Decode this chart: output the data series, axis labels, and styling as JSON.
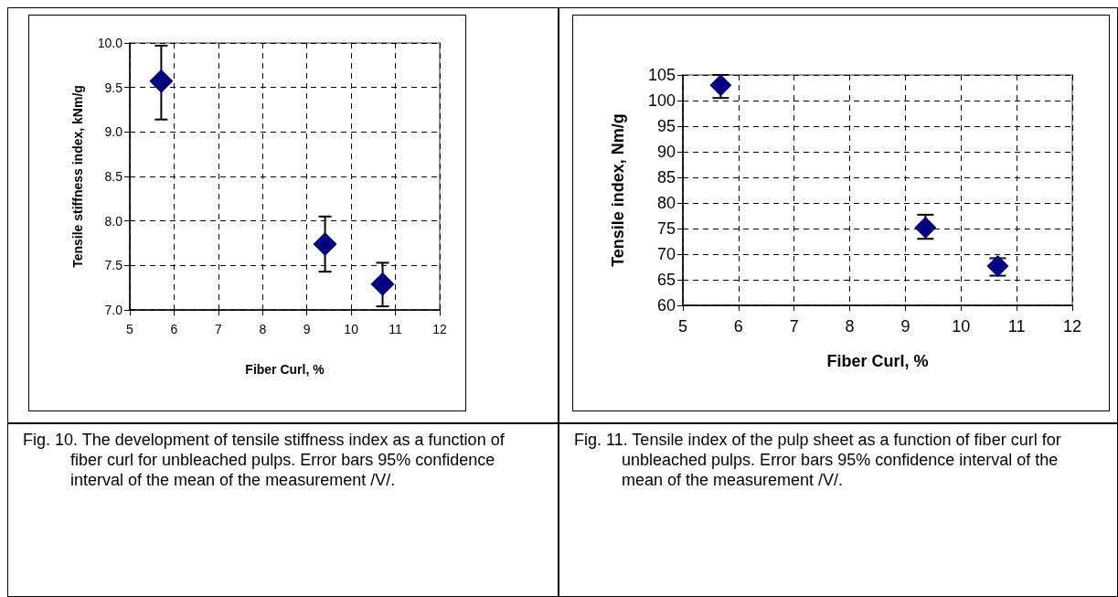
{
  "chart_data": [
    {
      "type": "scatter",
      "xlabel": "Fiber Curl, %",
      "ylabel": "Tensile stiffness index, kNm/g",
      "x": [
        5.71,
        9.41,
        10.71
      ],
      "values": [
        9.57,
        7.74,
        7.29
      ],
      "errors": [
        [
          9.14,
          9.97
        ],
        [
          7.43,
          8.05
        ],
        [
          7.04,
          7.53
        ]
      ],
      "color": "#000080",
      "marker": "diamond",
      "xlim": [
        5,
        12
      ],
      "xticks": [
        5,
        6,
        7,
        8,
        9,
        10,
        11,
        12
      ],
      "ylim": [
        7,
        10
      ],
      "yticks": [
        {
          "value": 7,
          "label": "7.0"
        },
        7.5,
        {
          "value": 8,
          "label": "8.0"
        },
        8.5,
        {
          "value": 9,
          "label": "9.0"
        },
        9.5,
        {
          "value": 10,
          "label": "10.0"
        }
      ],
      "grid": true,
      "annotations": [
        "Fig. 10. The development of tensile stiffness index as a function of fiber curl for unbleached pulps. Error bars 95% confidence interval of the mean of the measurement /V/."
      ]
    },
    {
      "type": "scatter",
      "xlabel": "Fiber Curl, %",
      "ylabel": "Tensile index, Nm/g",
      "x": [
        5.68,
        9.36,
        10.66
      ],
      "values": [
        103.0,
        75.2,
        67.7
      ],
      "errors": [
        [
          100.5,
          105
        ],
        [
          73.0,
          77.7
        ],
        [
          65.8,
          69.2
        ]
      ],
      "color": "#000080",
      "marker": "diamond",
      "xlim": [
        5,
        12
      ],
      "xticks": [
        5,
        6,
        7,
        8,
        9,
        10,
        11,
        12
      ],
      "ylim": [
        60,
        105
      ],
      "yticks": [
        60,
        65,
        70,
        75,
        80,
        85,
        90,
        95,
        100,
        105
      ],
      "grid": true,
      "annotations": [
        "Fig. 11. Tensile index of the pulp sheet as a function of fiber curl for unbleached pulps. Error bars 95% confidence interval of the mean of the measurement /V/."
      ]
    }
  ]
}
